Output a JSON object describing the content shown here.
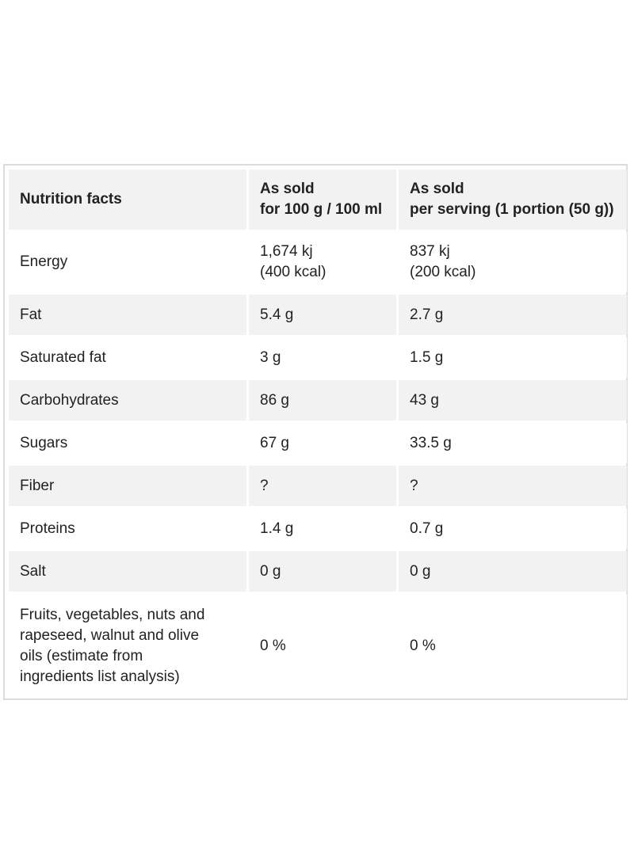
{
  "table": {
    "headers": {
      "label": "Nutrition facts",
      "per_100": "As sold\nfor 100 g / 100 ml",
      "per_serving": "As sold\nper serving (1 portion (50 g))"
    },
    "rows": [
      {
        "label": "Energy",
        "per_100": "1,674 kj\n(400 kcal)",
        "per_serving": "837 kj\n(200 kcal)"
      },
      {
        "label": "Fat",
        "per_100": "5.4 g",
        "per_serving": "2.7 g"
      },
      {
        "label": "Saturated fat",
        "per_100": "3 g",
        "per_serving": "1.5 g"
      },
      {
        "label": "Carbohydrates",
        "per_100": "86 g",
        "per_serving": "43 g"
      },
      {
        "label": "Sugars",
        "per_100": "67 g",
        "per_serving": "33.5 g"
      },
      {
        "label": "Fiber",
        "per_100": "?",
        "per_serving": "?"
      },
      {
        "label": "Proteins",
        "per_100": "1.4 g",
        "per_serving": "0.7 g"
      },
      {
        "label": "Salt",
        "per_100": "0 g",
        "per_serving": "0 g"
      },
      {
        "label": "Fruits, vegetables, nuts and\nrapeseed, walnut and olive\noils (estimate from\ningredients list analysis)",
        "per_100": "0 %",
        "per_serving": "0 %"
      }
    ]
  }
}
